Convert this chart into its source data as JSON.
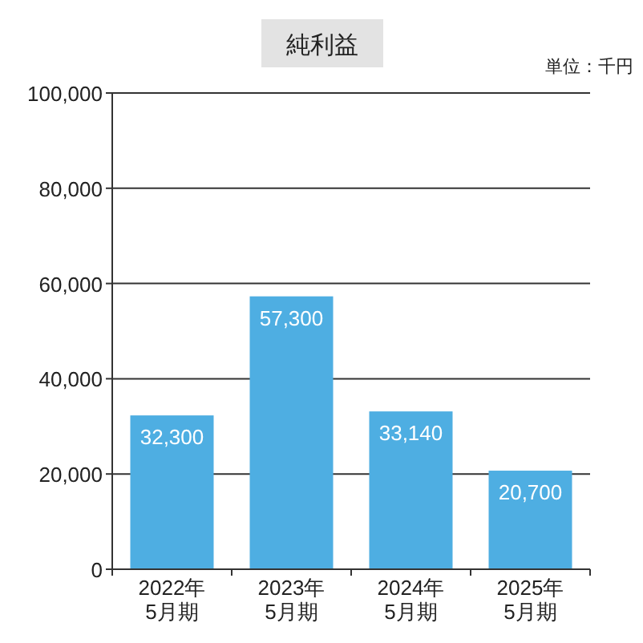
{
  "chart_data": {
    "type": "bar",
    "title": "純利益",
    "annotations": [
      "単位：千円"
    ],
    "categories": [
      "2022年\n5月期",
      "2023年\n5月期",
      "2024年\n5月期",
      "2025年\n5月期"
    ],
    "values": [
      32300,
      57300,
      33140,
      20700
    ],
    "value_labels": [
      "32,300",
      "57,300",
      "33,140",
      "20,700"
    ],
    "color": "#4eaee2",
    "ylim": [
      0,
      100000
    ],
    "yticks": [
      {
        "value": 0,
        "label": "0"
      },
      {
        "value": 20000,
        "label": "20,000"
      },
      {
        "value": 40000,
        "label": "40,000"
      },
      {
        "value": 60000,
        "label": "60,000"
      },
      {
        "value": 80000,
        "label": "80,000"
      },
      {
        "value": 100000,
        "label": "100,000"
      }
    ],
    "grid": "y"
  }
}
